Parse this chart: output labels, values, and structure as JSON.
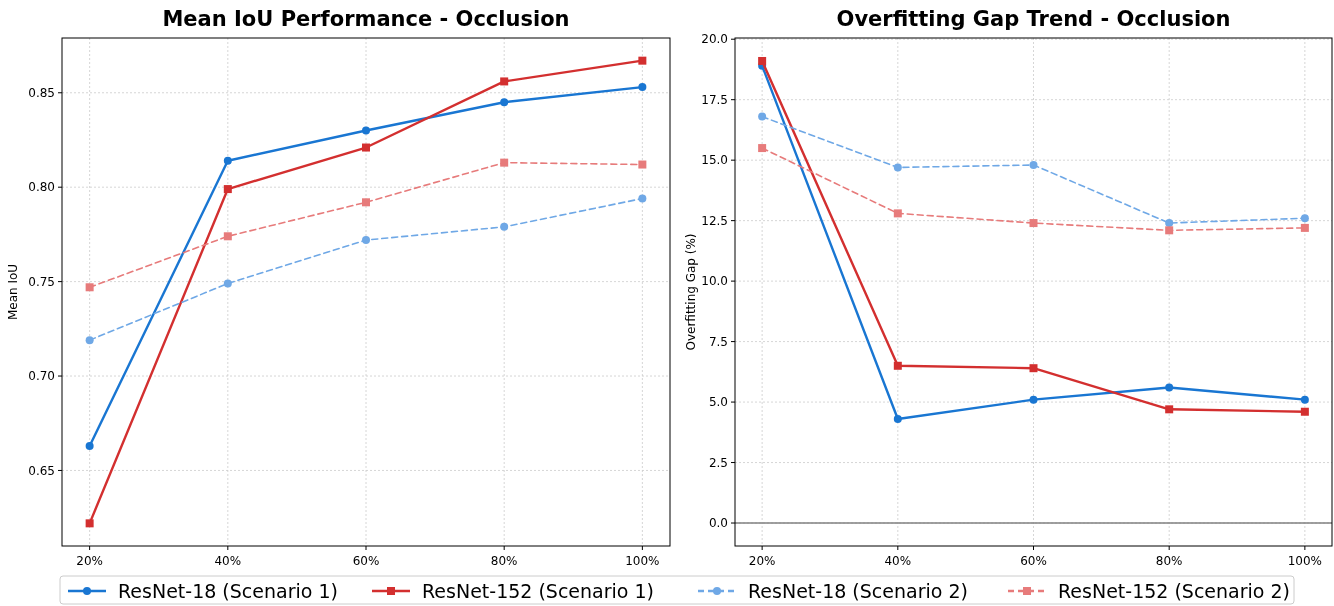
{
  "chart_data": [
    {
      "type": "line",
      "title": "Mean IoU Performance - Occlusion",
      "ylabel": "Mean IoU",
      "categories": [
        "20%",
        "40%",
        "60%",
        "80%",
        "100%"
      ],
      "ylim": [
        0.61,
        0.879
      ],
      "yticks": [
        {
          "value": 0.65,
          "label": "0.65"
        },
        {
          "value": 0.7,
          "label": "0.70"
        },
        {
          "value": 0.75,
          "label": "0.75"
        },
        {
          "value": 0.8,
          "label": "0.80"
        },
        {
          "value": 0.85,
          "label": "0.85"
        }
      ],
      "grid": true,
      "legend": "bottom",
      "series": [
        {
          "name": "ResNet-18 (Scenario 1)",
          "color": "#1976d2",
          "marker": "circle",
          "line_style": "solid",
          "values": [
            0.663,
            0.814,
            0.83,
            0.845,
            0.853
          ]
        },
        {
          "name": "ResNet-152 (Scenario 1)",
          "color": "#d32f2f",
          "marker": "square",
          "line_style": "solid",
          "values": [
            0.622,
            0.799,
            0.821,
            0.856,
            0.867
          ]
        },
        {
          "name": "ResNet-18 (Scenario 2)",
          "color": "#6fa8e6",
          "marker": "circle",
          "line_style": "dashed",
          "values": [
            0.719,
            0.749,
            0.772,
            0.779,
            0.794
          ]
        },
        {
          "name": "ResNet-152 (Scenario 2)",
          "color": "#e77b7b",
          "marker": "square",
          "line_style": "dashed",
          "values": [
            0.747,
            0.774,
            0.792,
            0.813,
            0.812
          ]
        }
      ]
    },
    {
      "type": "line",
      "title": "Overfitting Gap Trend - Occlusion",
      "ylabel": "Overfitting Gap (%)",
      "categories": [
        "20%",
        "40%",
        "60%",
        "80%",
        "100%"
      ],
      "ylim": [
        -0.95,
        20.05
      ],
      "yticks": [
        {
          "value": 0,
          "label": "0.0"
        },
        {
          "value": 2.5,
          "label": "2.5"
        },
        {
          "value": 5,
          "label": "5.0"
        },
        {
          "value": 7.5,
          "label": "7.5"
        },
        {
          "value": 10,
          "label": "10.0"
        },
        {
          "value": 12.5,
          "label": "12.5"
        },
        {
          "value": 15,
          "label": "15.0"
        },
        {
          "value": 17.5,
          "label": "17.5"
        },
        {
          "value": 20,
          "label": "20.0"
        }
      ],
      "grid": true,
      "legend": "bottom",
      "ref_lines": [
        {
          "axis": "y",
          "value": 0,
          "color": "#808080"
        }
      ],
      "series": [
        {
          "name": "ResNet-18 (Scenario 1)",
          "color": "#1976d2",
          "marker": "circle",
          "line_style": "solid",
          "values": [
            18.9,
            4.3,
            5.1,
            5.6,
            5.1
          ]
        },
        {
          "name": "ResNet-152 (Scenario 1)",
          "color": "#d32f2f",
          "marker": "square",
          "line_style": "solid",
          "values": [
            19.1,
            6.5,
            6.4,
            4.7,
            4.6
          ]
        },
        {
          "name": "ResNet-18 (Scenario 2)",
          "color": "#6fa8e6",
          "marker": "circle",
          "line_style": "dashed",
          "values": [
            16.8,
            14.7,
            14.8,
            12.4,
            12.6
          ]
        },
        {
          "name": "ResNet-152 (Scenario 2)",
          "color": "#e77b7b",
          "marker": "square",
          "line_style": "dashed",
          "values": [
            15.5,
            12.8,
            12.4,
            12.1,
            12.2
          ]
        }
      ]
    }
  ]
}
